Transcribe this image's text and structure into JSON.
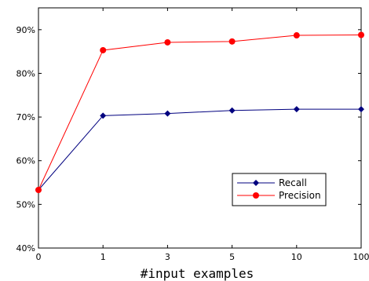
{
  "chart_data": {
    "type": "line",
    "title": "",
    "xlabel": "#input examples",
    "ylabel": "",
    "categories": [
      "0",
      "1",
      "3",
      "5",
      "10",
      "100"
    ],
    "y_tick_labels": [
      "40%",
      "50%",
      "60%",
      "70%",
      "80%",
      "90%"
    ],
    "y_ticks": [
      40,
      50,
      60,
      70,
      80,
      90
    ],
    "ylim": [
      40,
      95
    ],
    "grid": false,
    "legend_position": "lower-right",
    "series": [
      {
        "name": "Recall",
        "color": "#00007f",
        "marker": "diamond",
        "values": [
          53.3,
          70.3,
          70.8,
          71.5,
          71.8,
          71.8
        ]
      },
      {
        "name": "Precision",
        "color": "#ff0000",
        "marker": "circle",
        "values": [
          53.3,
          85.3,
          87.1,
          87.3,
          88.7,
          88.8
        ]
      }
    ]
  }
}
